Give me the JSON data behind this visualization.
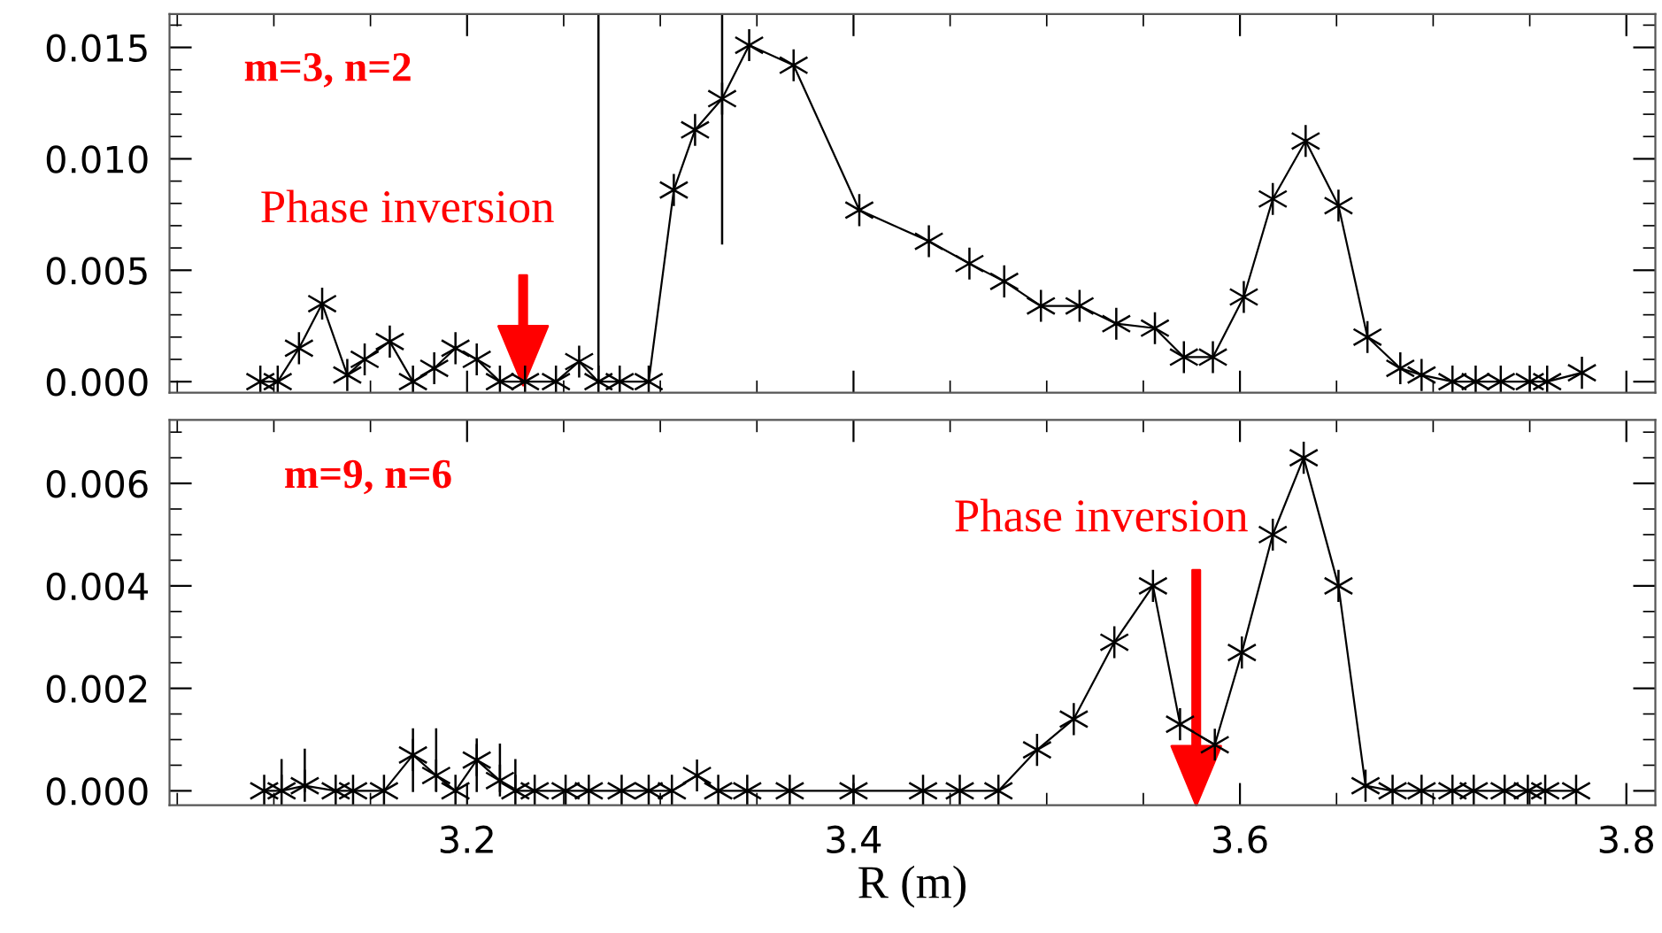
{
  "chart_data": [
    {
      "type": "line",
      "xlim": [
        3.046,
        3.815
      ],
      "ylim": [
        -0.0005,
        0.0165
      ],
      "xticks": [
        3.2,
        3.4,
        3.6,
        3.8
      ],
      "yticks": [
        {
          "value": 0,
          "label": "0.000"
        },
        {
          "value": 0.005,
          "label": "0.005"
        },
        {
          "value": 0.01,
          "label": "0.010"
        },
        {
          "value": 0.015,
          "label": "0.015"
        }
      ],
      "tick_labels": "y",
      "marker": "cross",
      "line_style": "solid",
      "grid": false,
      "legend": false,
      "annotations": [
        "m=3, n=2",
        "Phase inversion"
      ],
      "x": [
        3.093,
        3.102,
        3.113,
        3.125,
        3.138,
        3.147,
        3.16,
        3.172,
        3.183,
        3.194,
        3.205,
        3.217,
        3.23,
        3.246,
        3.258,
        3.268,
        3.279,
        3.294,
        3.307,
        3.318,
        3.332,
        3.346,
        3.369,
        3.403,
        3.439,
        3.46,
        3.478,
        3.497,
        3.517,
        3.536,
        3.556,
        3.571,
        3.586,
        3.602,
        3.617,
        3.634,
        3.651,
        3.666,
        3.683,
        3.694,
        3.71,
        3.722,
        3.735,
        3.75,
        3.759,
        3.777
      ],
      "series": [
        {
          "color": "#000000",
          "values": [
            0,
            0,
            0.0015,
            0.0035,
            0.0003,
            0.001,
            0.0018,
            0,
            0.0006,
            0.0015,
            0.001,
            0,
            0,
            0,
            0.0009,
            0,
            0,
            0,
            0.0086,
            0.0113,
            0.0127,
            0.0151,
            0.0142,
            0.0077,
            0.0063,
            0.0053,
            0.0045,
            0.0034,
            0.0034,
            0.0026,
            0.0024,
            0.0011,
            0.0011,
            0.0038,
            0.0082,
            0.0108,
            0.0079,
            0.002,
            0.0006,
            0.0003,
            0,
            0,
            0,
            0,
            0,
            0.0004
          ],
          "errors": [
            null,
            null,
            null,
            null,
            null,
            null,
            null,
            null,
            null,
            null,
            null,
            null,
            null,
            null,
            null,
            [
              0,
              0.0165
            ],
            null,
            null,
            null,
            null,
            [
              0.0062,
              0.0165
            ],
            null,
            null,
            null,
            null,
            null,
            null,
            null,
            null,
            null,
            null,
            null,
            null,
            null,
            null,
            null,
            null,
            null,
            null,
            null,
            null,
            null,
            null,
            null,
            null,
            null
          ]
        }
      ]
    },
    {
      "type": "line",
      "xlim": [
        3.046,
        3.815
      ],
      "ylim": [
        -0.00028,
        0.00724
      ],
      "xticks": [
        3.2,
        3.4,
        3.6,
        3.8
      ],
      "yticks": [
        {
          "value": 0,
          "label": "0.000"
        },
        {
          "value": 0.002,
          "label": "0.002"
        },
        {
          "value": 0.004,
          "label": "0.004"
        },
        {
          "value": 0.006,
          "label": "0.006"
        }
      ],
      "xlabel": "R (m)",
      "marker": "cross",
      "line_style": "solid",
      "grid": false,
      "legend": false,
      "annotations": [
        "m=9, n=6",
        "Phase inversion"
      ],
      "x": [
        3.095,
        3.104,
        3.116,
        3.132,
        3.141,
        3.157,
        3.172,
        3.184,
        3.194,
        3.205,
        3.217,
        3.225,
        3.235,
        3.251,
        3.263,
        3.28,
        3.294,
        3.306,
        3.319,
        3.33,
        3.345,
        3.367,
        3.4,
        3.436,
        3.455,
        3.475,
        3.495,
        3.514,
        3.535,
        3.555,
        3.569,
        3.587,
        3.601,
        3.617,
        3.633,
        3.651,
        3.665,
        3.679,
        3.694,
        3.71,
        3.721,
        3.737,
        3.749,
        3.758,
        3.774
      ],
      "series": [
        {
          "color": "#000000",
          "values": [
            0,
            0,
            0.0001,
            0,
            0,
            0,
            0.0007,
            0.0003,
            0,
            0.0006,
            0.0002,
            0,
            0,
            0,
            0,
            0,
            0,
            0,
            0.0003,
            0,
            0,
            0,
            0,
            0,
            0,
            0,
            0.0008,
            0.0014,
            0.0029,
            0.004,
            0.0013,
            0.0009,
            0.0027,
            0.005,
            0.0065,
            0.004,
            0.0001,
            0,
            0,
            0,
            0,
            0,
            0,
            0,
            0
          ],
          "errors": [
            null,
            [
              0,
              0.0006
            ],
            [
              0,
              0.0008
            ],
            null,
            null,
            null,
            [
              0,
              0.0012
            ],
            [
              0,
              0.0012
            ],
            null,
            [
              0,
              0.001
            ],
            [
              0,
              0.0009
            ],
            [
              0,
              0.0006
            ],
            null,
            null,
            null,
            null,
            null,
            null,
            null,
            null,
            null,
            null,
            null,
            null,
            null,
            null,
            null,
            null,
            null,
            null,
            null,
            null,
            null,
            null,
            null,
            null,
            null,
            null,
            null,
            null,
            null,
            null,
            null,
            null,
            null
          ]
        }
      ]
    }
  ]
}
